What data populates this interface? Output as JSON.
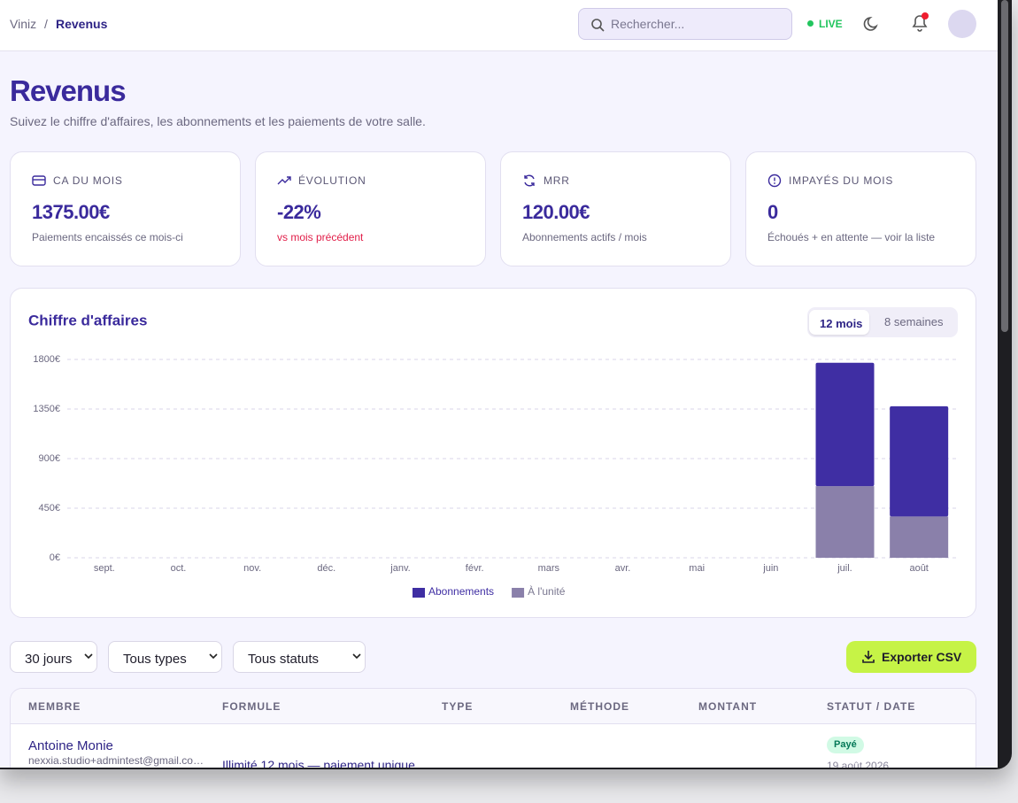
{
  "header": {
    "breadcrumb": [
      "Viniz",
      "Revenus"
    ],
    "separator": "/",
    "search_placeholder": "Rechercher...",
    "live": "LIVE"
  },
  "page": {
    "title": "Revenus",
    "subtitle": "Suivez le chiffre d'affaires, les abonnements et les paiements de votre salle."
  },
  "kpis": [
    {
      "label": "CA DU MOIS",
      "value": "1375.00€",
      "note": "Paiements encaissés ce mois-ci"
    },
    {
      "label": "ÉVOLUTION",
      "value": "-22%",
      "note": "vs mois précédent"
    },
    {
      "label": "MRR",
      "value": "120.00€",
      "note": "Abonnements actifs / mois"
    },
    {
      "label": "IMPAYÉS DU MOIS",
      "value": "0",
      "note": "Échoués + en attente — voir la liste"
    }
  ],
  "chart_data": {
    "type": "bar",
    "stacked": true,
    "title": "Chiffre d'affaires",
    "range_options": [
      "12 mois",
      "8 semaines"
    ],
    "categories": [
      "sept.",
      "oct.",
      "nov.",
      "déc.",
      "janv.",
      "févr.",
      "mars",
      "avr.",
      "mai",
      "juin",
      "juil.",
      "août"
    ],
    "series": [
      {
        "name": "Abonnements",
        "color": "#3f2ea3",
        "values": [
          0,
          0,
          0,
          0,
          0,
          0,
          0,
          0,
          0,
          0,
          1120,
          1000
        ]
      },
      {
        "name": "À l'unité",
        "color": "#8a80aa",
        "values": [
          0,
          0,
          0,
          0,
          0,
          0,
          0,
          0,
          0,
          0,
          650,
          375
        ]
      }
    ],
    "ylim": [
      0,
      1800
    ],
    "yticks": [
      {
        "value": 0,
        "label": "0€"
      },
      {
        "value": 450,
        "label": "450€"
      },
      {
        "value": 900,
        "label": "900€"
      },
      {
        "value": 1350,
        "label": "1350€"
      },
      {
        "value": 1800,
        "label": "1800€"
      }
    ],
    "grid": true,
    "legend": "bottom"
  },
  "filters": [
    "30 jours",
    "Tous types",
    "Tous statuts"
  ],
  "export_button": "Exporter CSV",
  "table": {
    "columns": [
      "MEMBRE",
      "FORMULE",
      "TYPE",
      "MÉTHODE",
      "MONTANT",
      "STATUT / DATE"
    ],
    "rows": [
      {
        "member": "Antoine Monie",
        "email": "nexxia.studio+admintest@gmail.co…",
        "plan": "Illimité 12 mois — paiement unique",
        "status": "Payé",
        "date": "19 août 2026"
      }
    ]
  }
}
